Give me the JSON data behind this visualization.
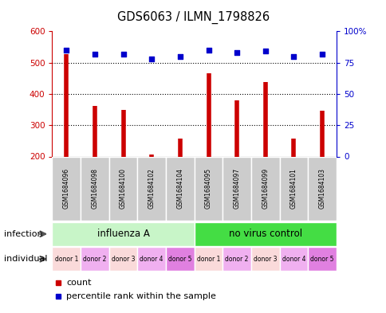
{
  "title": "GDS6063 / ILMN_1798826",
  "samples": [
    "GSM1684096",
    "GSM1684098",
    "GSM1684100",
    "GSM1684102",
    "GSM1684104",
    "GSM1684095",
    "GSM1684097",
    "GSM1684099",
    "GSM1684101",
    "GSM1684103"
  ],
  "counts": [
    528,
    362,
    348,
    207,
    257,
    467,
    380,
    439,
    257,
    347
  ],
  "percentiles": [
    85,
    82,
    82,
    78,
    80,
    85,
    83,
    84,
    80,
    82
  ],
  "ylim_left": [
    200,
    600
  ],
  "ylim_right": [
    0,
    100
  ],
  "yticks_left": [
    200,
    300,
    400,
    500,
    600
  ],
  "yticks_right": [
    0,
    25,
    50,
    75,
    100
  ],
  "ytick_right_labels": [
    "0",
    "25",
    "50",
    "75",
    "100%"
  ],
  "infection_groups": [
    {
      "label": "influenza A",
      "start": 0,
      "end": 5,
      "color": "#c8f5c8"
    },
    {
      "label": "no virus control",
      "start": 5,
      "end": 10,
      "color": "#44dd44"
    }
  ],
  "individual_labels": [
    "donor 1",
    "donor 2",
    "donor 3",
    "donor 4",
    "donor 5",
    "donor 1",
    "donor 2",
    "donor 3",
    "donor 4",
    "donor 5"
  ],
  "individual_colors": [
    "#fadadA",
    "#f0b0f0",
    "#fadadA",
    "#f0b0f0",
    "#e080e0",
    "#fadadA",
    "#f0b0f0",
    "#fadadA",
    "#f0b0f0",
    "#e080e0"
  ],
  "bar_color": "#cc0000",
  "dot_color": "#0000cc",
  "sample_bg_color": "#cccccc",
  "infection_label": "infection",
  "individual_label": "individual",
  "legend_count": "count",
  "legend_percentile": "percentile rank within the sample",
  "grid_yticks": [
    300,
    400,
    500
  ]
}
